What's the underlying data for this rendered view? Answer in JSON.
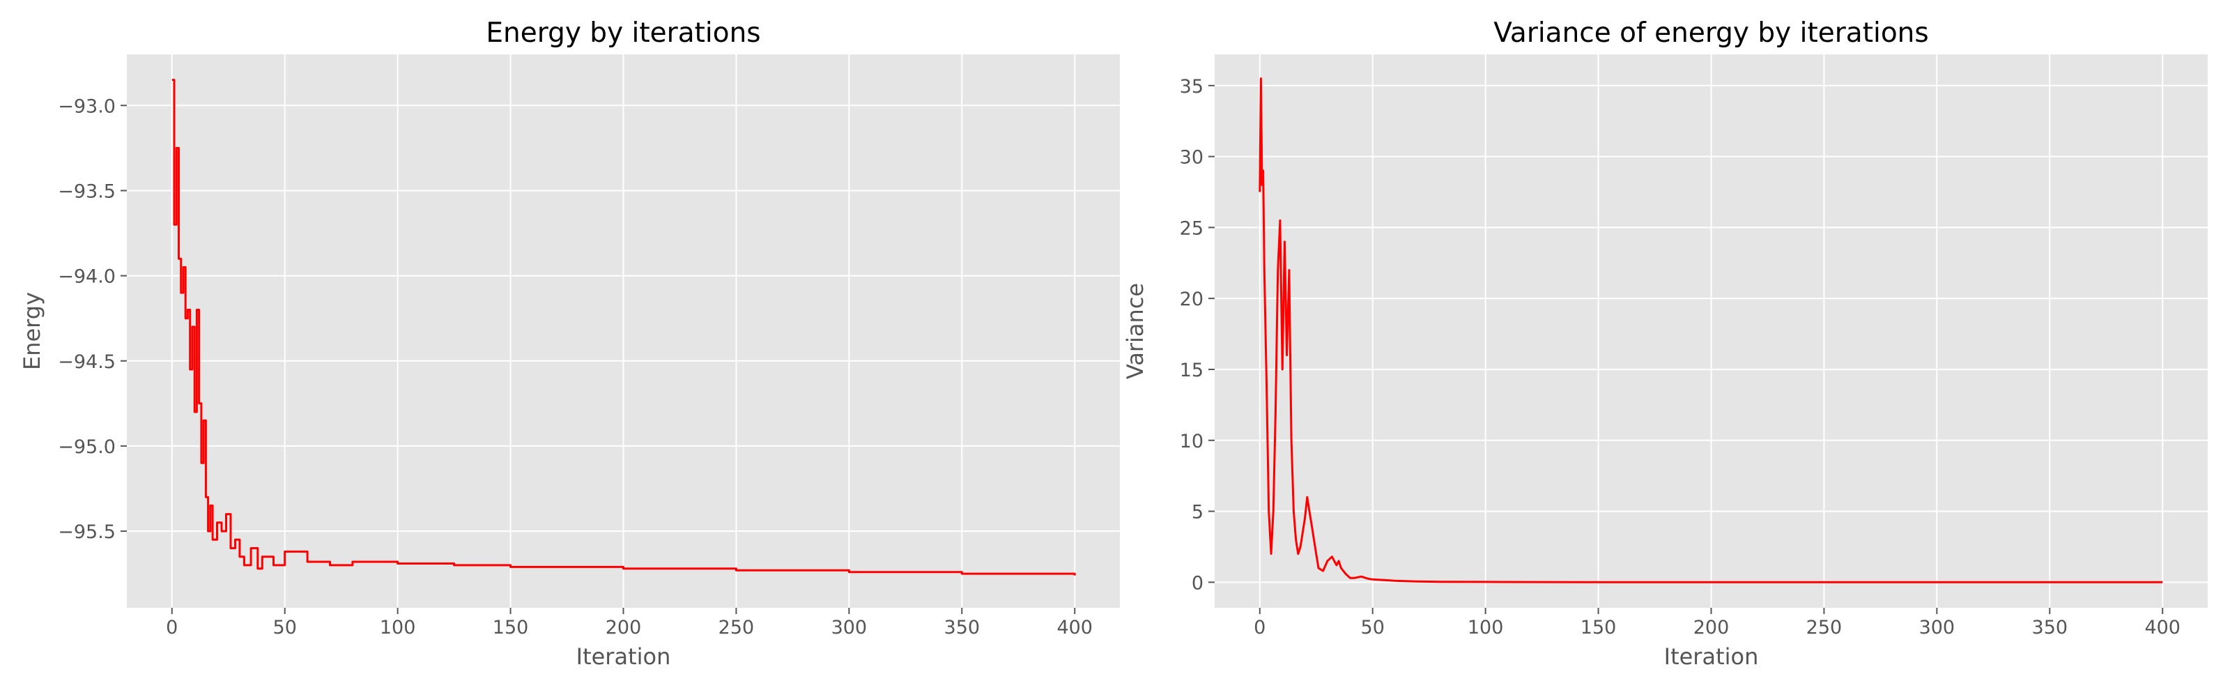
{
  "chart_data": [
    {
      "type": "line",
      "title": "Energy by iterations",
      "xlabel": "Iteration",
      "ylabel": "Energy",
      "xlim": [
        -20,
        420
      ],
      "ylim": [
        -95.95,
        -92.7
      ],
      "xticks": [
        0,
        50,
        100,
        150,
        200,
        250,
        300,
        350,
        400
      ],
      "yticks": [
        -93.0,
        -93.5,
        -94.0,
        -94.5,
        -95.0,
        -95.5
      ],
      "ytick_labels": [
        "−93.0",
        "−93.5",
        "−94.0",
        "−94.5",
        "−95.0",
        "−95.5"
      ],
      "grid": true,
      "style": "step",
      "color": "#ff0000",
      "background": "#e5e5e5",
      "series": [
        {
          "x": [
            0,
            1,
            2,
            3,
            4,
            5,
            6,
            7,
            8,
            9,
            10,
            11,
            12,
            13,
            14,
            15,
            16,
            17,
            18,
            20,
            22,
            24,
            26,
            28,
            30,
            32,
            35,
            38,
            40,
            45,
            50,
            60,
            70,
            80,
            100,
            125,
            150,
            175,
            200,
            225,
            250,
            275,
            300,
            325,
            350,
            375,
            400
          ],
          "y": [
            -92.85,
            -93.7,
            -93.25,
            -93.9,
            -94.1,
            -93.95,
            -94.25,
            -94.2,
            -94.55,
            -94.3,
            -94.8,
            -94.2,
            -94.75,
            -95.1,
            -94.85,
            -95.3,
            -95.5,
            -95.35,
            -95.55,
            -95.45,
            -95.5,
            -95.4,
            -95.6,
            -95.55,
            -95.65,
            -95.7,
            -95.6,
            -95.72,
            -95.65,
            -95.7,
            -95.62,
            -95.68,
            -95.7,
            -95.68,
            -95.69,
            -95.7,
            -95.71,
            -95.71,
            -95.72,
            -95.72,
            -95.73,
            -95.73,
            -95.74,
            -95.74,
            -95.75,
            -95.75,
            -95.76
          ]
        }
      ]
    },
    {
      "type": "line",
      "title": "Variance of energy by iterations",
      "xlabel": "Iteration",
      "ylabel": "Variance",
      "xlim": [
        -20,
        420
      ],
      "ylim": [
        -1.8,
        37.2
      ],
      "xticks": [
        0,
        50,
        100,
        150,
        200,
        250,
        300,
        350,
        400
      ],
      "yticks": [
        0,
        5,
        10,
        15,
        20,
        25,
        30,
        35
      ],
      "ytick_labels": [
        "0",
        "5",
        "10",
        "15",
        "20",
        "25",
        "30",
        "35"
      ],
      "grid": true,
      "style": "line",
      "color": "#ff0000",
      "background": "#e5e5e5",
      "series": [
        {
          "x": [
            0,
            0.5,
            1,
            1.5,
            2,
            3,
            4,
            5,
            6,
            7,
            8,
            9,
            10,
            11,
            12,
            13,
            14,
            15,
            16,
            17,
            18,
            19,
            20,
            21,
            22,
            23,
            24,
            25,
            26,
            28,
            30,
            32,
            34,
            35,
            36,
            38,
            40,
            42,
            45,
            48,
            50,
            55,
            60,
            70,
            80,
            100,
            150,
            200,
            250,
            300,
            350,
            400
          ],
          "y": [
            27.5,
            35.5,
            28,
            29,
            22,
            14,
            5,
            2,
            5,
            12,
            22,
            25.5,
            15,
            24,
            16,
            22,
            10,
            5,
            3,
            2,
            2.5,
            3.5,
            4.5,
            6,
            5,
            4,
            3,
            2,
            1,
            0.8,
            1.5,
            1.8,
            1.2,
            1.5,
            1,
            0.6,
            0.3,
            0.3,
            0.4,
            0.25,
            0.2,
            0.15,
            0.1,
            0.05,
            0.03,
            0.02,
            0.01,
            0.01,
            0.01,
            0.01,
            0.01,
            0.01
          ]
        }
      ]
    }
  ]
}
